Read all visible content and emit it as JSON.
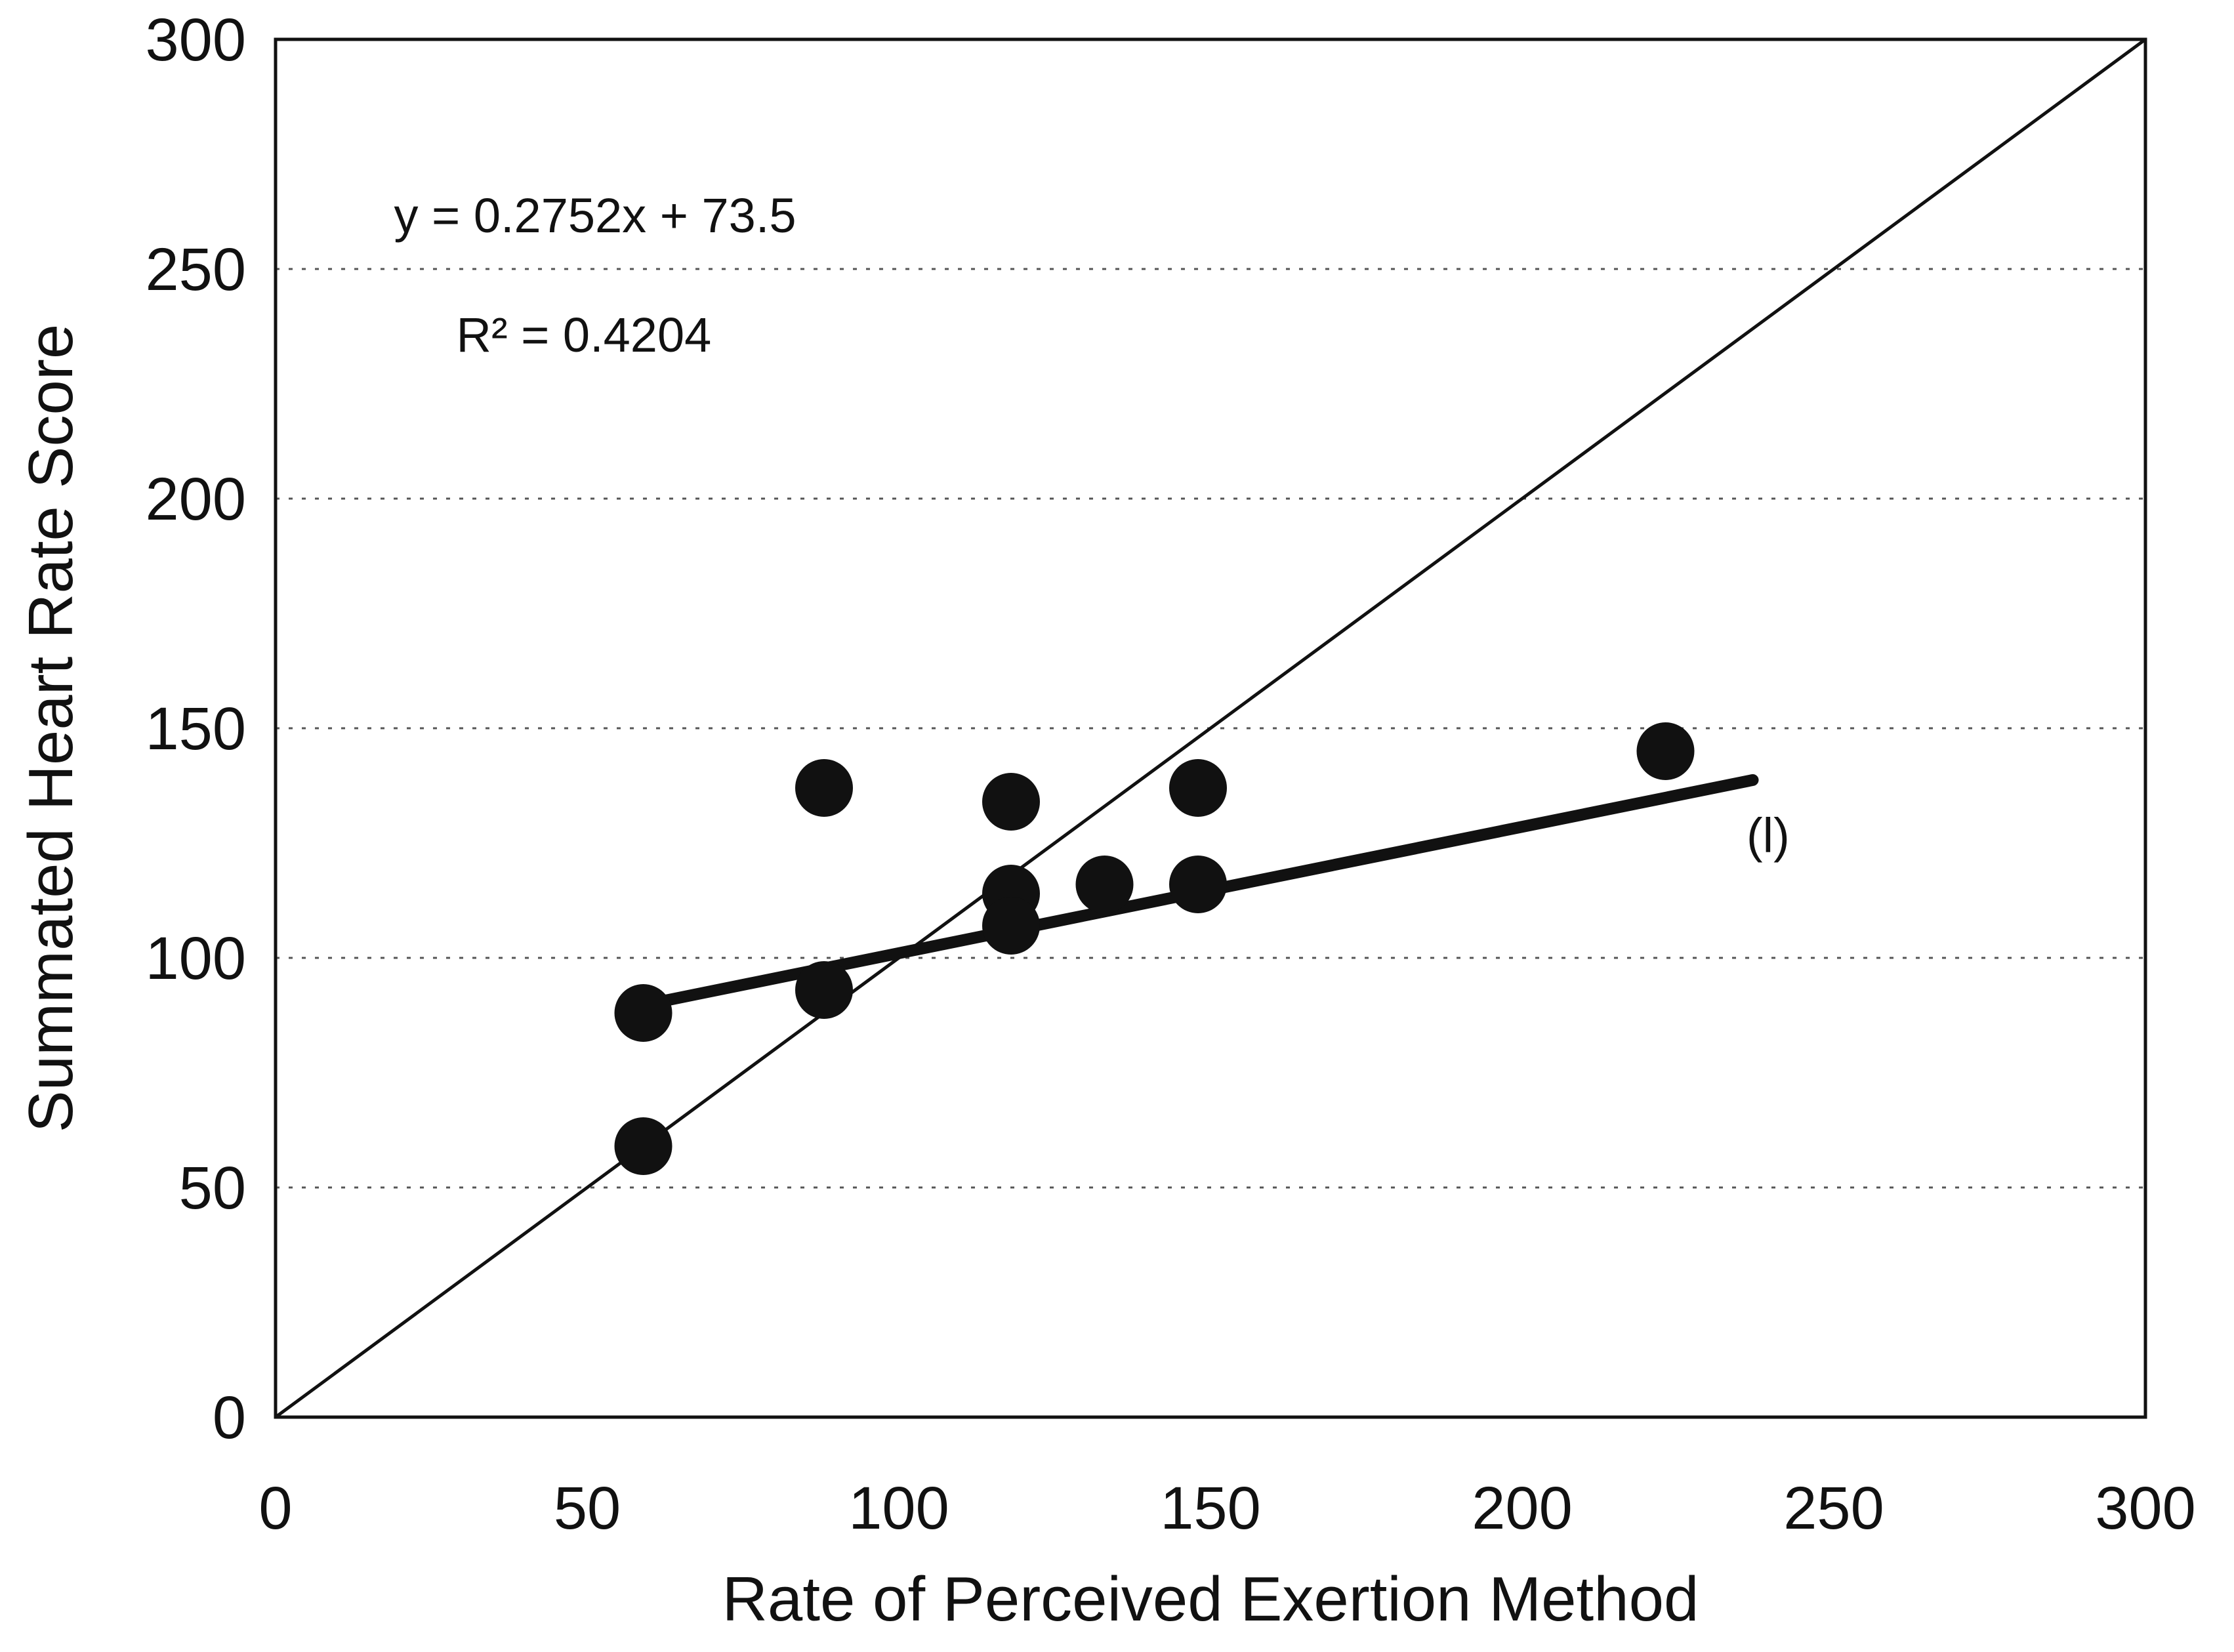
{
  "chart_data": {
    "type": "scatter",
    "title": "",
    "xlabel": "Rate of Perceived Exertion Method",
    "ylabel": "Summated Heart Rate Score",
    "xlim": [
      0,
      300
    ],
    "ylim": [
      0,
      300
    ],
    "x_ticks": [
      "0",
      "50",
      "100",
      "150",
      "200",
      "250",
      "300"
    ],
    "y_ticks": [
      "0",
      "50",
      "100",
      "150",
      "200",
      "250",
      "300"
    ],
    "grid": "horizontal dotted",
    "legend": "none",
    "series": [
      {
        "marker": "filled circle",
        "color": "#111111",
        "points": [
          {
            "x": 59,
            "y": 88
          },
          {
            "x": 59,
            "y": 59
          },
          {
            "x": 88,
            "y": 137
          },
          {
            "x": 88,
            "y": 93
          },
          {
            "x": 118,
            "y": 134
          },
          {
            "x": 118,
            "y": 114
          },
          {
            "x": 118,
            "y": 107
          },
          {
            "x": 133,
            "y": 116
          },
          {
            "x": 148,
            "y": 137
          },
          {
            "x": 148,
            "y": 116
          },
          {
            "x": 223,
            "y": 145
          }
        ]
      }
    ],
    "trendline": {
      "equation": "y = 0.2752x + 73.5",
      "r_squared": "R² = 0.4204",
      "slope": 0.2752,
      "intercept": 73.5,
      "x_range": [
        59,
        237
      ]
    },
    "reference_line": {
      "type": "identity",
      "x_range": [
        0,
        300
      ]
    },
    "annotations": [
      {
        "text": "y = 0.2752x + 73.5"
      },
      {
        "text": "R² = 0.4204"
      },
      {
        "text": "(l)"
      }
    ]
  }
}
